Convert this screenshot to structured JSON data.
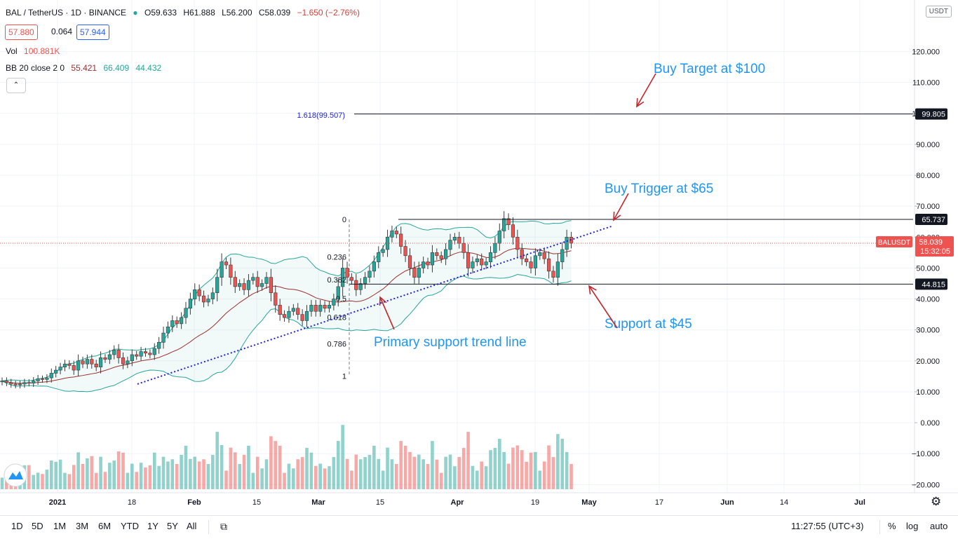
{
  "header": {
    "symbol_title": "BAL / TetherUS · 1D · BINANCE",
    "open": "O59.633",
    "high": "H61.888",
    "low": "L56.200",
    "close": "C58.039",
    "change": "−1.650 (−2.76%)",
    "bid": "57.880",
    "spread": "0.064",
    "ask": "57.944",
    "vol_label": "Vol",
    "vol_value": "100.881K",
    "bb_label": "BB 20 close 2 0",
    "bb_basis": "55.421",
    "bb_upper": "66.409",
    "bb_lower": "44.432",
    "collapse_icon": "chevron-up-icon"
  },
  "currency_badge": "USDT",
  "colors": {
    "up": "#26a69a",
    "down": "#ef5350",
    "annotation": "#2196f3",
    "trendline": "#1e22d8",
    "arrow": "#c2272d",
    "bb_line": "#26a69a",
    "basis_line": "#9b2f2f"
  },
  "chart_data": {
    "type": "candlestick",
    "pair": "BALUSDT",
    "timeframe": "1D",
    "y_axis": {
      "scale": "linear",
      "range": [
        -22,
        130
      ],
      "ticks": [
        -20,
        -10,
        0,
        10,
        20,
        30,
        40,
        50,
        60,
        70,
        80,
        90,
        100,
        110,
        120
      ],
      "tick_labels": [
        "−20.000",
        "−10.000",
        "0.000",
        "10.000",
        "20.000",
        "30.000",
        "40.000",
        "50.000",
        "60.000",
        "70.000",
        "80.000",
        "90.000",
        "100.000",
        "110.000",
        "120.000"
      ]
    },
    "x_axis": {
      "tick_labels": [
        "2021",
        "18",
        "Feb",
        "15",
        "Mar",
        "15",
        "Apr",
        "19",
        "May",
        "17",
        "Jun",
        "14",
        "Jul"
      ],
      "tick_dates": [
        "2021-01-01",
        "2021-01-18",
        "2021-02-01",
        "2021-02-15",
        "2021-03-01",
        "2021-03-15",
        "2021-04-01",
        "2021-04-19",
        "2021-05-01",
        "2021-05-17",
        "2021-06-01",
        "2021-06-14",
        "2021-07-01"
      ]
    },
    "approx_daily_close": [
      13.5,
      13,
      12.5,
      12.2,
      12.5,
      13,
      12.8,
      13.5,
      14.2,
      14,
      14.5,
      16,
      17,
      18,
      19,
      18.5,
      17,
      20,
      19,
      20.5,
      19,
      18,
      21,
      20.5,
      22,
      23.5,
      21,
      19,
      20,
      22,
      21.5,
      23,
      22.5,
      22,
      24,
      26,
      29,
      31,
      33,
      32,
      34,
      37,
      40,
      43,
      41,
      39,
      40,
      42,
      47,
      52,
      51,
      47,
      44,
      45,
      43,
      46,
      47,
      44,
      45,
      47,
      42,
      38,
      35,
      34,
      36,
      37,
      35,
      33,
      36,
      38,
      36,
      38,
      37,
      38,
      40,
      44,
      50,
      47,
      46,
      43,
      45,
      47,
      49,
      52,
      55,
      56,
      60,
      62,
      61,
      57,
      54,
      50,
      47,
      50,
      52,
      51,
      55,
      54,
      53,
      56,
      59,
      60,
      58,
      55,
      50,
      52,
      53,
      51,
      52,
      55,
      58,
      62,
      66,
      64,
      60,
      56,
      53,
      52,
      50,
      54,
      55,
      53,
      49,
      47,
      52,
      56,
      60,
      58.039
    ],
    "bollinger": {
      "length": 20,
      "source": "close",
      "mult": 2,
      "basis": 55.421,
      "upper": 66.409,
      "lower": 44.432
    },
    "volume_max_approx": 17.5,
    "horizontal_levels": [
      {
        "value": 99.805,
        "label": "99.805"
      },
      {
        "value": 65.737,
        "label": "65.737"
      },
      {
        "value": 44.815,
        "label": "44.815"
      }
    ],
    "fib_levels": [
      {
        "ratio": "0",
        "value": 65.7
      },
      {
        "ratio": "0.236",
        "value": 53.6
      },
      {
        "ratio": "0.382",
        "value": 46.2
      },
      {
        "ratio": "0.5",
        "value": 40.1
      },
      {
        "ratio": "0.618",
        "value": 34.1
      },
      {
        "ratio": "0.786",
        "value": 25.5
      },
      {
        "ratio": "1",
        "value": 15.1
      },
      {
        "ratio": "1.618(99.507)",
        "value": 99.507
      }
    ],
    "last_price_label": {
      "symbol": "BALUSDT",
      "price": "58.039",
      "countdown": "15:32:05"
    },
    "annotations": [
      {
        "text": "Buy Target at $100"
      },
      {
        "text": "Buy Trigger at $65"
      },
      {
        "text": "Support at $45"
      },
      {
        "text": "Primary support trend line"
      }
    ]
  },
  "bottom_bar": {
    "timeframes": [
      "1D",
      "5D",
      "1M",
      "3M",
      "6M",
      "YTD",
      "1Y",
      "5Y",
      "All"
    ],
    "compare_icon": "calendar-range-icon",
    "clock": "11:27:55 (UTC+3)",
    "percent": "%",
    "log": "log",
    "auto": "auto",
    "settings_icon": "gear-icon"
  }
}
